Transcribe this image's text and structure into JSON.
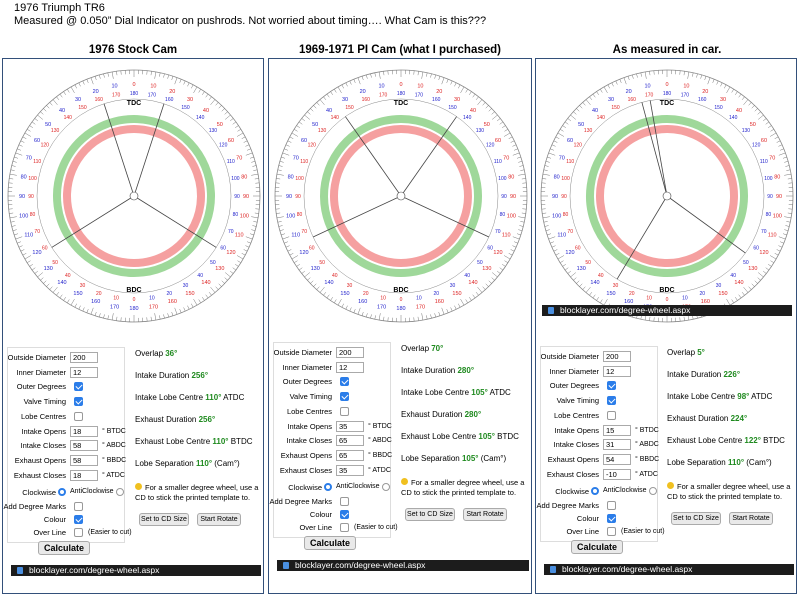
{
  "header": {
    "line1": "1976 Triumph TR6",
    "line2": "Measured @ 0.050”  Dial Indicator on pushrods.  Not worried about timing….  What Cam is this???"
  },
  "columns": [
    {
      "title": "1976 Stock Cam",
      "wheel": {
        "intake_opens": 18,
        "intake_closes": 58,
        "exhaust_opens": 58,
        "exhaust_closes": 18,
        "tdc": "TDC",
        "bdc": "BDC"
      },
      "form": {
        "labels": {
          "outer_diameter": "Outside Diameter",
          "inner_diameter": "Inner Diameter",
          "outer_degrees": "Outer Degrees",
          "valve_timing": "Valve Timing",
          "lobe_centres": "Lobe Centres",
          "intake_opens": "Intake Opens",
          "intake_closes": "Intake Closes",
          "exhaust_opens": "Exhaust Opens",
          "exhaust_closes": "Exhaust Closes",
          "clockwise": "Clockwise",
          "anticlockwise": "AntiClockwise",
          "add_degree_marks": "Add Degree Marks",
          "colour": "Colour",
          "over_line": "Over Line",
          "easier": "(Easier to cut)",
          "calculate": "Calculate"
        },
        "outer_diameter": "200",
        "inner_diameter": "12",
        "intake_opens": "18",
        "intake_closes": "58",
        "exhaust_opens": "58",
        "exhaust_closes": "18",
        "units": {
          "btdc": "° BTDC",
          "abdc": "° ABDC",
          "bbdc": "° BBDC",
          "atdc": "° ATDC"
        }
      },
      "results": {
        "overlap_label": "Overlap",
        "overlap": "36°",
        "intake_duration_label": "Intake Duration",
        "intake_duration": "256°",
        "intake_lobe_label": "Intake Lobe Centre",
        "intake_lobe": "110°",
        "intake_lobe_suffix": "ATDC",
        "exhaust_duration_label": "Exhaust Duration",
        "exhaust_duration": "256°",
        "exhaust_lobe_label": "Exhaust Lobe Centre",
        "exhaust_lobe": "110°",
        "exhaust_lobe_suffix": "BTDC",
        "lobe_sep_label": "Lobe Separation",
        "lobe_sep": "110°",
        "lobe_sep_suffix": "(Cam°)"
      },
      "tip": "For a smaller degree wheel, use a CD to stick the printed template to.",
      "btn_cd": "Set to CD Size",
      "btn_rotate": "Start Rotate",
      "url": "blocklayer.com/degree-wheel.aspx"
    },
    {
      "title": "1969-1971 PI Cam (what I purchased)",
      "wheel": {
        "intake_opens": 35,
        "intake_closes": 65,
        "exhaust_opens": 65,
        "exhaust_closes": 35,
        "tdc": "TDC",
        "bdc": "BDC"
      },
      "form": {
        "outer_diameter": "200",
        "inner_diameter": "12",
        "intake_opens": "35",
        "intake_closes": "65",
        "exhaust_opens": "65",
        "exhaust_closes": "35"
      },
      "results": {
        "overlap": "70°",
        "intake_duration": "280°",
        "intake_lobe": "105°",
        "exhaust_duration": "280°",
        "exhaust_lobe": "105°",
        "lobe_sep": "105°"
      },
      "url": "blocklayer.com/degree-wheel.aspx"
    },
    {
      "title": "As measured in car.",
      "wheel": {
        "intake_opens": 15,
        "intake_closes": 31,
        "exhaust_opens": 54,
        "exhaust_closes": -10,
        "tdc": "TDC",
        "bdc": "BDC"
      },
      "form": {
        "outer_diameter": "200",
        "inner_diameter": "12",
        "intake_opens": "15",
        "intake_closes": "31",
        "exhaust_opens": "54",
        "exhaust_closes": "-10"
      },
      "results": {
        "overlap": "5°",
        "intake_duration": "226°",
        "intake_lobe": "98°",
        "exhaust_duration": "224°",
        "exhaust_lobe": "122°",
        "lobe_sep": "110°"
      },
      "url": "blocklayer.com/degree-wheel.aspx",
      "url_top": "blocklayer.com/degree-wheel.aspx"
    }
  ],
  "colors": {
    "intake": "#9fd89a",
    "exhaust": "#f5a0a0",
    "border": "#33507a",
    "accent": "#1f8a1f",
    "tick_red": "#d22",
    "tick_blue": "#22c"
  }
}
